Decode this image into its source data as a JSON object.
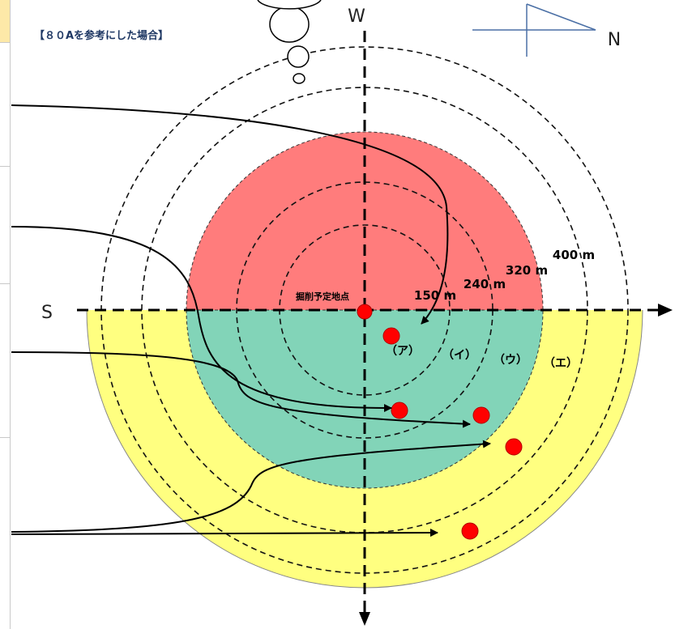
{
  "title": "【８０Aを参考にした場合】",
  "compass": {
    "north": "N",
    "west": "W",
    "south": "S"
  },
  "center_label": "掘削予定地点",
  "radius_labels": [
    "150 m",
    "240 m",
    "320 m",
    "400 m"
  ],
  "zone_labels": [
    "（ア）",
    "（イ）",
    "（ウ）",
    "（エ）"
  ],
  "colors": {
    "upper_zone": "#ff7c7c",
    "inner_lower_zone": "#82d4b8",
    "outer_lower_zone": "#ffff80",
    "marker": "#ff0000"
  }
}
